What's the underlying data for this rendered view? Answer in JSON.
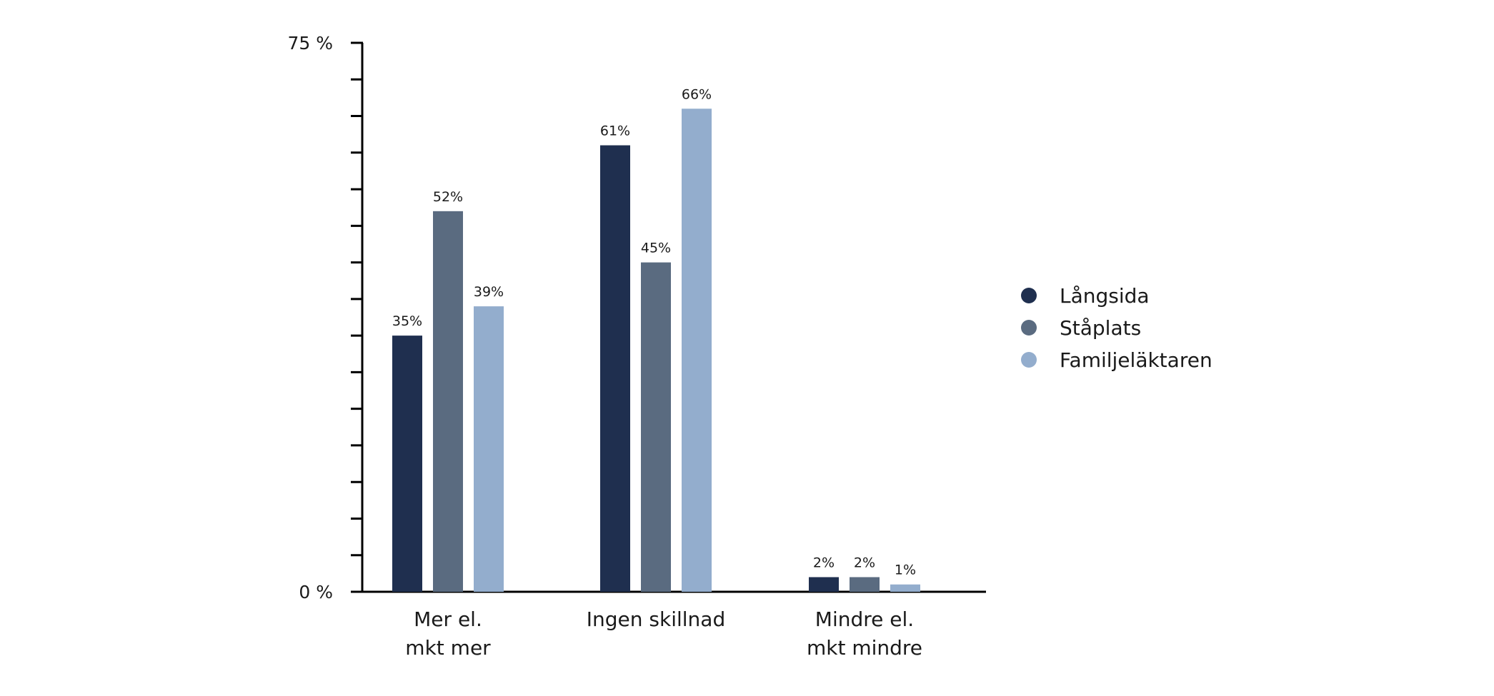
{
  "chart_data": {
    "type": "bar",
    "categories": [
      [
        "Mer el.",
        "mkt mer"
      ],
      [
        "Ingen skillnad"
      ],
      [
        "Mindre el.",
        "mkt mindre"
      ]
    ],
    "series": [
      {
        "name": "Långsida",
        "color": "#1f2f4f",
        "values": [
          35,
          61,
          2
        ],
        "labels": [
          "35%",
          "61%",
          "2%"
        ]
      },
      {
        "name": "Ståplats",
        "color": "#5a6b80",
        "values": [
          52,
          45,
          2
        ],
        "labels": [
          "52%",
          "45%",
          "2%"
        ]
      },
      {
        "name": "Familjeläktaren",
        "color": "#93adcd",
        "values": [
          39,
          66,
          1
        ],
        "labels": [
          "39%",
          "66%",
          "1%"
        ]
      }
    ],
    "ylim": [
      0,
      75
    ],
    "y_ticks": {
      "major_labels": [
        "0 %",
        "75 %"
      ],
      "minor_step": 5
    },
    "legend_position": "right",
    "grid": false,
    "title": "",
    "xlabel": "",
    "ylabel": ""
  }
}
